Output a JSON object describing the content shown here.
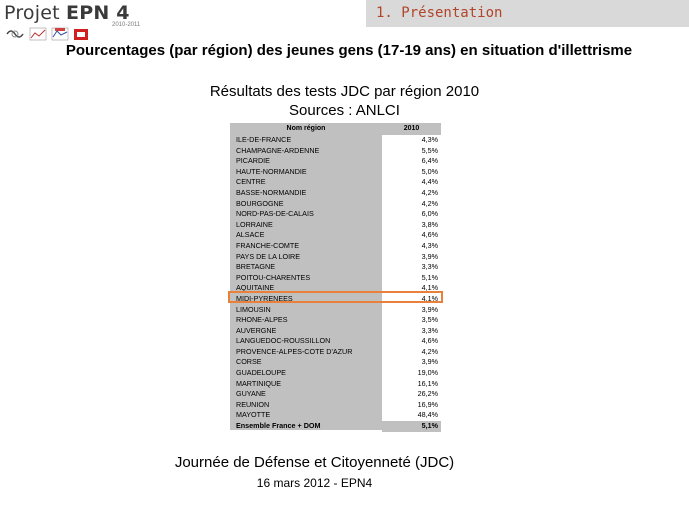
{
  "header": {
    "brand_text": "Projet",
    "brand_number": "EPN 4",
    "year": "2010-2011",
    "section": "1. Présentation",
    "logo_icons": [
      "wave-logo-icon",
      "chart-logo-icon",
      "chart-logo-icon",
      "red-emblem-logo-icon"
    ]
  },
  "title": "Pourcentages (par région) des jeunes gens (17-19 ans) en situation d'illettrisme",
  "subtitle": "Résultats des tests JDC par région 2010",
  "sources": "Sources : ANLCI",
  "table": {
    "header_region": "Nom région",
    "header_year": "2010",
    "rows": [
      {
        "region": "ILE-DE-FRANCE",
        "value": "4,3%"
      },
      {
        "region": "CHAMPAGNE-ARDENNE",
        "value": "5,5%"
      },
      {
        "region": "PICARDIE",
        "value": "6,4%"
      },
      {
        "region": "HAUTE-NORMANDIE",
        "value": "5,0%"
      },
      {
        "region": "CENTRE",
        "value": "4,4%"
      },
      {
        "region": "BASSE-NORMANDIE",
        "value": "4,2%"
      },
      {
        "region": "BOURGOGNE",
        "value": "4,2%"
      },
      {
        "region": "NORD-PAS-DE-CALAIS",
        "value": "6,0%"
      },
      {
        "region": "LORRAINE",
        "value": "3,8%"
      },
      {
        "region": "ALSACE",
        "value": "4,6%"
      },
      {
        "region": "FRANCHE-COMTE",
        "value": "4,3%"
      },
      {
        "region": "PAYS DE LA LOIRE",
        "value": "3,9%"
      },
      {
        "region": "BRETAGNE",
        "value": "3,3%"
      },
      {
        "region": "POITOU-CHARENTES",
        "value": "5,1%"
      },
      {
        "region": "AQUITAINE",
        "value": "4,1%"
      },
      {
        "region": "MIDI-PYRENEES",
        "value": "4,1%"
      },
      {
        "region": "LIMOUSIN",
        "value": "3,9%"
      },
      {
        "region": "RHONE-ALPES",
        "value": "3,5%"
      },
      {
        "region": "AUVERGNE",
        "value": "3,3%"
      },
      {
        "region": "LANGUEDOC-ROUSSILLON",
        "value": "4,6%"
      },
      {
        "region": "PROVENCE-ALPES-COTE D'AZUR",
        "value": "4,2%"
      },
      {
        "region": "CORSE",
        "value": "3,9%"
      },
      {
        "region": "GUADELOUPE",
        "value": "19,0%"
      },
      {
        "region": "MARTINIQUE",
        "value": "16,1%"
      },
      {
        "region": "GUYANE",
        "value": "26,2%"
      },
      {
        "region": "REUNION",
        "value": "16,9%"
      },
      {
        "region": "MAYOTTE",
        "value": "48,4%"
      }
    ],
    "total": {
      "region": "Ensemble France + DOM",
      "value": "5,1%"
    },
    "highlighted_region": "MIDI-PYRENEES"
  },
  "footer": {
    "line1": "Journée de Défense et Citoyenneté (JDC)",
    "line2": "16 mars 2012 - EPN4"
  },
  "colors": {
    "section_text": "#b0452a",
    "section_bg": "#d9d9d9",
    "table_bg": "#c0c0c0",
    "highlight": "#e8823a"
  }
}
